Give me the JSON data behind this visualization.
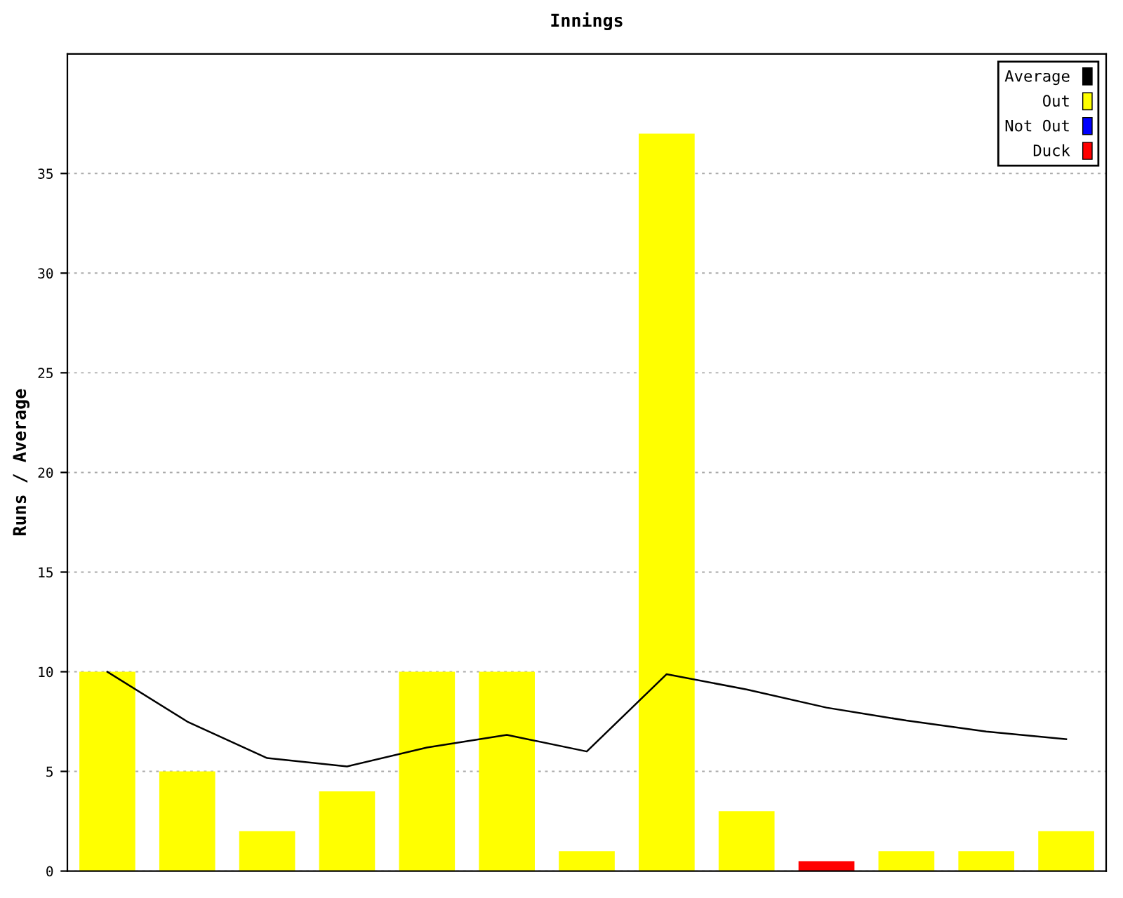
{
  "chart_data": {
    "type": "bar",
    "title": "Innings",
    "ylabel": "Runs / Average",
    "categories": [
      null,
      null,
      null,
      null,
      null,
      null,
      null,
      null,
      null,
      null,
      null,
      null,
      null
    ],
    "series": [
      {
        "name": "Average",
        "type": "line",
        "color": "#000000",
        "values": [
          10,
          7.5,
          5.67,
          5.25,
          6.2,
          6.83,
          6,
          9.88,
          9.11,
          8.2,
          7.55,
          7,
          6.62
        ]
      },
      {
        "name": "Out",
        "color": "#ffff00",
        "values": [
          10,
          5,
          2,
          4,
          10,
          10,
          1,
          37,
          3,
          null,
          1,
          1,
          2
        ]
      },
      {
        "name": "Not Out",
        "color": "#0000ff",
        "values": [
          null,
          null,
          null,
          null,
          null,
          null,
          null,
          null,
          null,
          null,
          null,
          null,
          null
        ]
      },
      {
        "name": "Duck",
        "color": "#ff0000",
        "values": [
          null,
          null,
          null,
          null,
          null,
          null,
          null,
          null,
          null,
          0.5,
          null,
          null,
          null
        ]
      }
    ],
    "ylim": [
      0,
      41
    ],
    "yticks": [
      0,
      5,
      10,
      15,
      20,
      25,
      30,
      35
    ],
    "grid": "y",
    "legend": "top right"
  }
}
